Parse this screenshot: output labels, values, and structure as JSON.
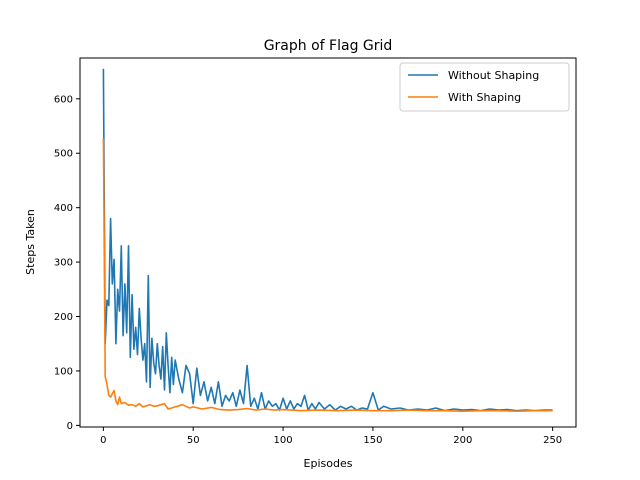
{
  "chart_data": {
    "type": "line",
    "title": "Graph of Flag Grid",
    "xlabel": "Episodes",
    "ylabel": "Steps Taken",
    "xlim": [
      -13,
      263
    ],
    "ylim": [
      -3,
      675
    ],
    "xticks": [
      0,
      50,
      100,
      150,
      200,
      250
    ],
    "yticks": [
      0,
      100,
      200,
      300,
      400,
      500,
      600
    ],
    "grid": false,
    "legend_position": "top-right",
    "series": [
      {
        "name": "Without Shaping",
        "color": "#1f77b4",
        "x": [
          0,
          1,
          2,
          3,
          4,
          5,
          6,
          7,
          8,
          9,
          10,
          11,
          12,
          13,
          14,
          15,
          16,
          17,
          18,
          19,
          20,
          21,
          22,
          23,
          24,
          25,
          26,
          27,
          28,
          29,
          30,
          31,
          32,
          33,
          34,
          35,
          36,
          37,
          38,
          39,
          40,
          42,
          44,
          46,
          48,
          50,
          52,
          54,
          56,
          58,
          60,
          62,
          64,
          66,
          68,
          70,
          72,
          74,
          76,
          78,
          80,
          82,
          84,
          86,
          88,
          90,
          92,
          94,
          96,
          98,
          100,
          102,
          104,
          106,
          108,
          110,
          112,
          114,
          116,
          118,
          120,
          123,
          126,
          129,
          132,
          135,
          138,
          141,
          144,
          147,
          150,
          153,
          156,
          160,
          165,
          170,
          175,
          180,
          185,
          190,
          195,
          200,
          205,
          210,
          215,
          220,
          225,
          230,
          235,
          240,
          245,
          250
        ],
        "y": [
          655,
          150,
          230,
          220,
          380,
          260,
          305,
          150,
          250,
          210,
          330,
          165,
          260,
          170,
          330,
          125,
          240,
          140,
          180,
          130,
          215,
          160,
          120,
          150,
          80,
          275,
          70,
          160,
          115,
          95,
          150,
          110,
          85,
          145,
          65,
          170,
          110,
          60,
          125,
          75,
          120,
          85,
          60,
          110,
          95,
          40,
          105,
          55,
          80,
          45,
          70,
          40,
          80,
          35,
          55,
          45,
          60,
          35,
          65,
          40,
          110,
          35,
          50,
          30,
          60,
          30,
          45,
          35,
          40,
          28,
          50,
          30,
          45,
          30,
          40,
          35,
          55,
          28,
          40,
          30,
          42,
          30,
          38,
          28,
          35,
          30,
          35,
          28,
          32,
          30,
          60,
          28,
          35,
          30,
          32,
          28,
          30,
          28,
          32,
          27,
          30,
          28,
          29,
          27,
          30,
          28,
          29,
          27,
          28,
          27,
          28,
          28
        ]
      },
      {
        "name": "With Shaping",
        "color": "#ff7f0e",
        "x": [
          0,
          1,
          2,
          3,
          4,
          5,
          6,
          7,
          8,
          9,
          10,
          12,
          14,
          16,
          18,
          20,
          22,
          24,
          26,
          28,
          30,
          32,
          34,
          36,
          38,
          40,
          42,
          44,
          46,
          48,
          50,
          55,
          60,
          65,
          70,
          75,
          80,
          85,
          90,
          95,
          100,
          110,
          120,
          130,
          140,
          150,
          160,
          170,
          180,
          190,
          200,
          210,
          220,
          230,
          240,
          250
        ],
        "y": [
          527,
          90,
          75,
          55,
          52,
          58,
          64,
          45,
          38,
          52,
          40,
          42,
          37,
          38,
          35,
          40,
          34,
          36,
          38,
          35,
          36,
          38,
          40,
          30,
          32,
          34,
          36,
          38,
          35,
          32,
          34,
          30,
          33,
          29,
          28,
          29,
          31,
          28,
          30,
          28,
          29,
          27,
          28,
          27,
          28,
          27,
          27,
          28,
          27,
          27,
          26,
          27,
          27,
          26,
          27,
          27
        ]
      }
    ]
  }
}
